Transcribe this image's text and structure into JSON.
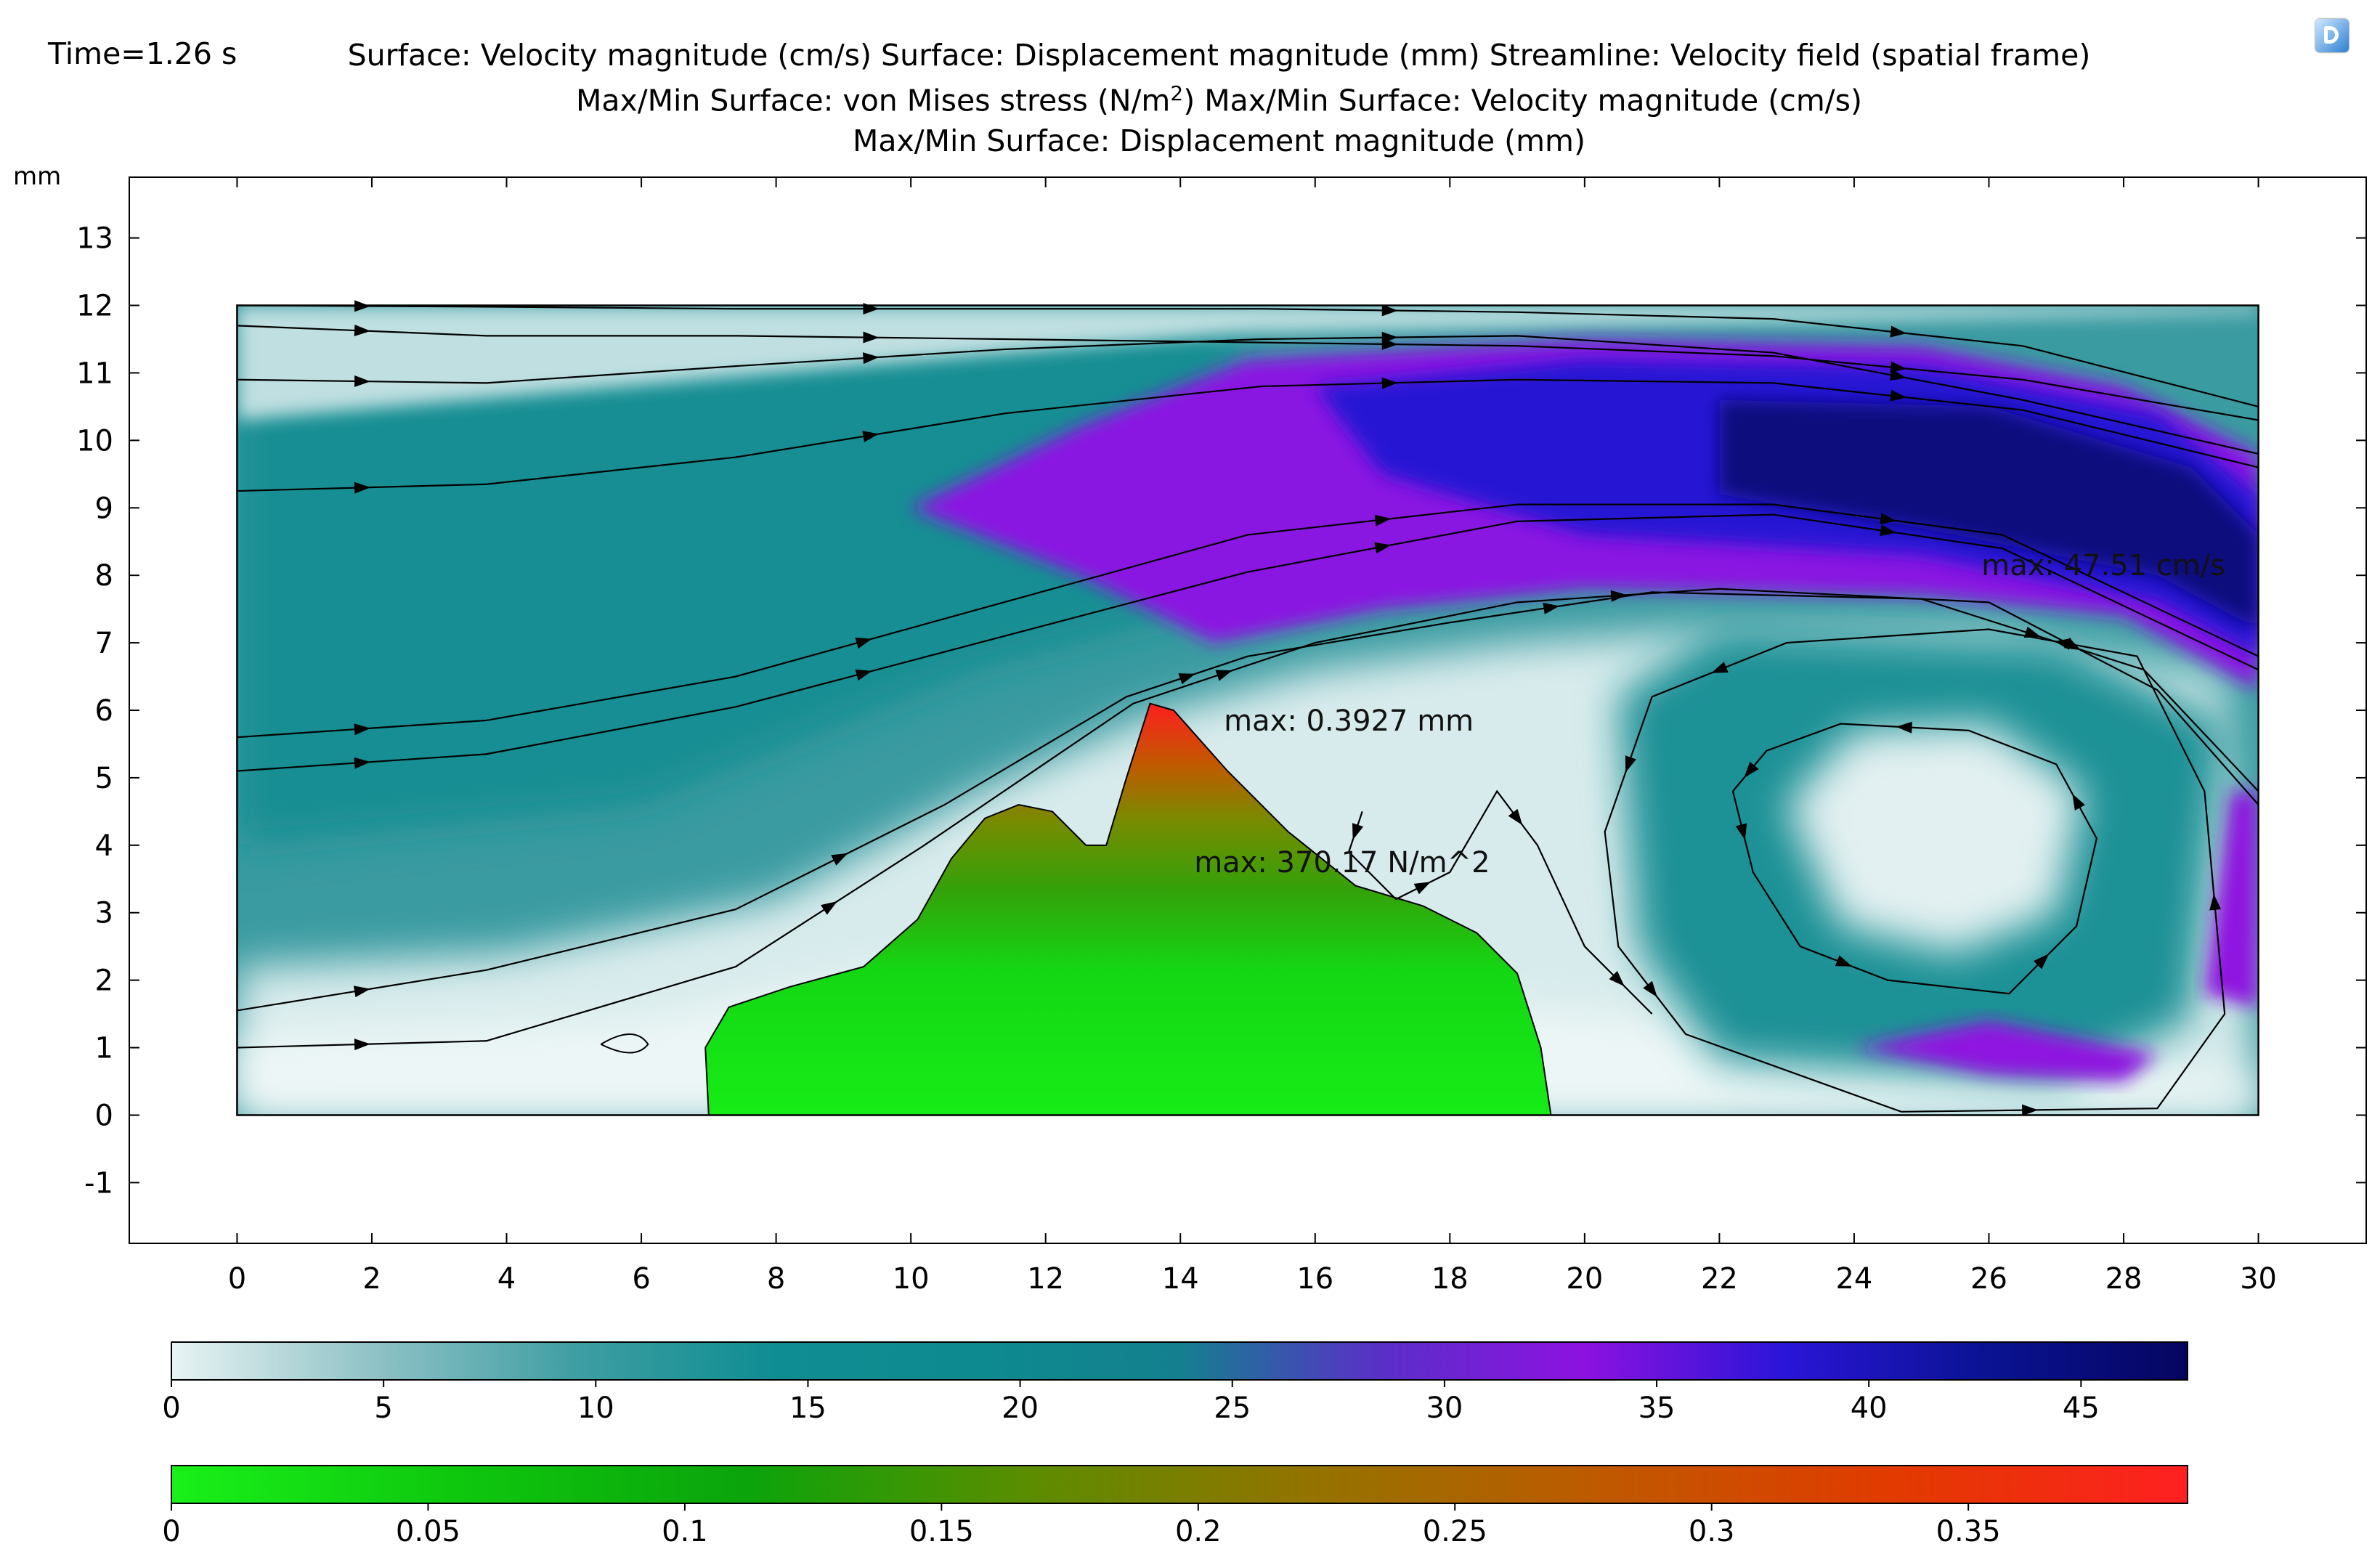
{
  "header": {
    "time": "Time=1.26 s",
    "line1": "Surface: Velocity magnitude (cm/s)  Surface: Displacement magnitude (mm)  Streamline: Velocity field (spatial frame)",
    "line2_a": "Max/Min Surface: von Mises stress (N/m",
    "line2_sup": "2",
    "line2_b": ")  Max/Min Surface: Velocity magnitude (cm/s)",
    "line3": "Max/Min Surface: Displacement magnitude (mm)"
  },
  "chart_data": {
    "type": "heatmap",
    "xunit": "mm",
    "yunit": "mm",
    "xlim": [
      -1.6,
      31.6
    ],
    "ylim": [
      -1.9,
      13.9
    ],
    "xticks": [
      "0",
      "2",
      "4",
      "6",
      "8",
      "10",
      "12",
      "14",
      "16",
      "18",
      "20",
      "22",
      "24",
      "26",
      "28",
      "30"
    ],
    "yticks": [
      "-1",
      "0",
      "1",
      "2",
      "3",
      "4",
      "5",
      "6",
      "7",
      "8",
      "9",
      "10",
      "11",
      "12",
      "13"
    ],
    "domain": {
      "x": [
        0,
        30
      ],
      "y": [
        0,
        12
      ]
    },
    "grid": false,
    "annotations": [
      {
        "text": "max: 47.51 cm/s",
        "x": 27.7,
        "y": 8.0
      },
      {
        "text": "max: 0.3927 mm",
        "x": 16.5,
        "y": 5.7
      },
      {
        "text": "max: 370.17 N/m^2",
        "x": 16.4,
        "y": 3.6
      }
    ],
    "structure_outline": [
      [
        7.0,
        0
      ],
      [
        6.95,
        1.0
      ],
      [
        7.3,
        1.6
      ],
      [
        8.2,
        1.9
      ],
      [
        9.3,
        2.2
      ],
      [
        10.1,
        2.9
      ],
      [
        10.6,
        3.8
      ],
      [
        11.1,
        4.4
      ],
      [
        11.6,
        4.6
      ],
      [
        12.1,
        4.5
      ],
      [
        12.6,
        4.0
      ],
      [
        12.9,
        4.0
      ],
      [
        13.2,
        5.0
      ],
      [
        13.55,
        6.1
      ],
      [
        13.9,
        6.0
      ],
      [
        14.7,
        5.1
      ],
      [
        15.6,
        4.2
      ],
      [
        16.6,
        3.4
      ],
      [
        17.6,
        3.1
      ],
      [
        18.4,
        2.7
      ],
      [
        19.0,
        2.1
      ],
      [
        19.35,
        1.0
      ],
      [
        19.5,
        0
      ]
    ],
    "velocity_colorbar": {
      "ticks": [
        0,
        5,
        10,
        15,
        20,
        25,
        30,
        35,
        40,
        45
      ],
      "range": [
        0,
        47.51
      ],
      "colors": [
        "#e8f3f4",
        "#8fc2c6",
        "#3f9ea3",
        "#0e8d92",
        "#0d8a8f",
        "#14808f",
        "#5a2fc8",
        "#8d12e0",
        "#2a15d8",
        "#0a1392",
        "#050560"
      ]
    },
    "displacement_colorbar": {
      "ticks": [
        "0",
        "0.05",
        "0.1",
        "0.15",
        "0.2",
        "0.25",
        "0.3",
        "0.35"
      ],
      "range": [
        0,
        0.3927
      ],
      "colors": [
        "#19f019",
        "#0ec70e",
        "#0ba40b",
        "#5d8c00",
        "#967200",
        "#c05800",
        "#e23a00",
        "#ff2020"
      ]
    }
  }
}
